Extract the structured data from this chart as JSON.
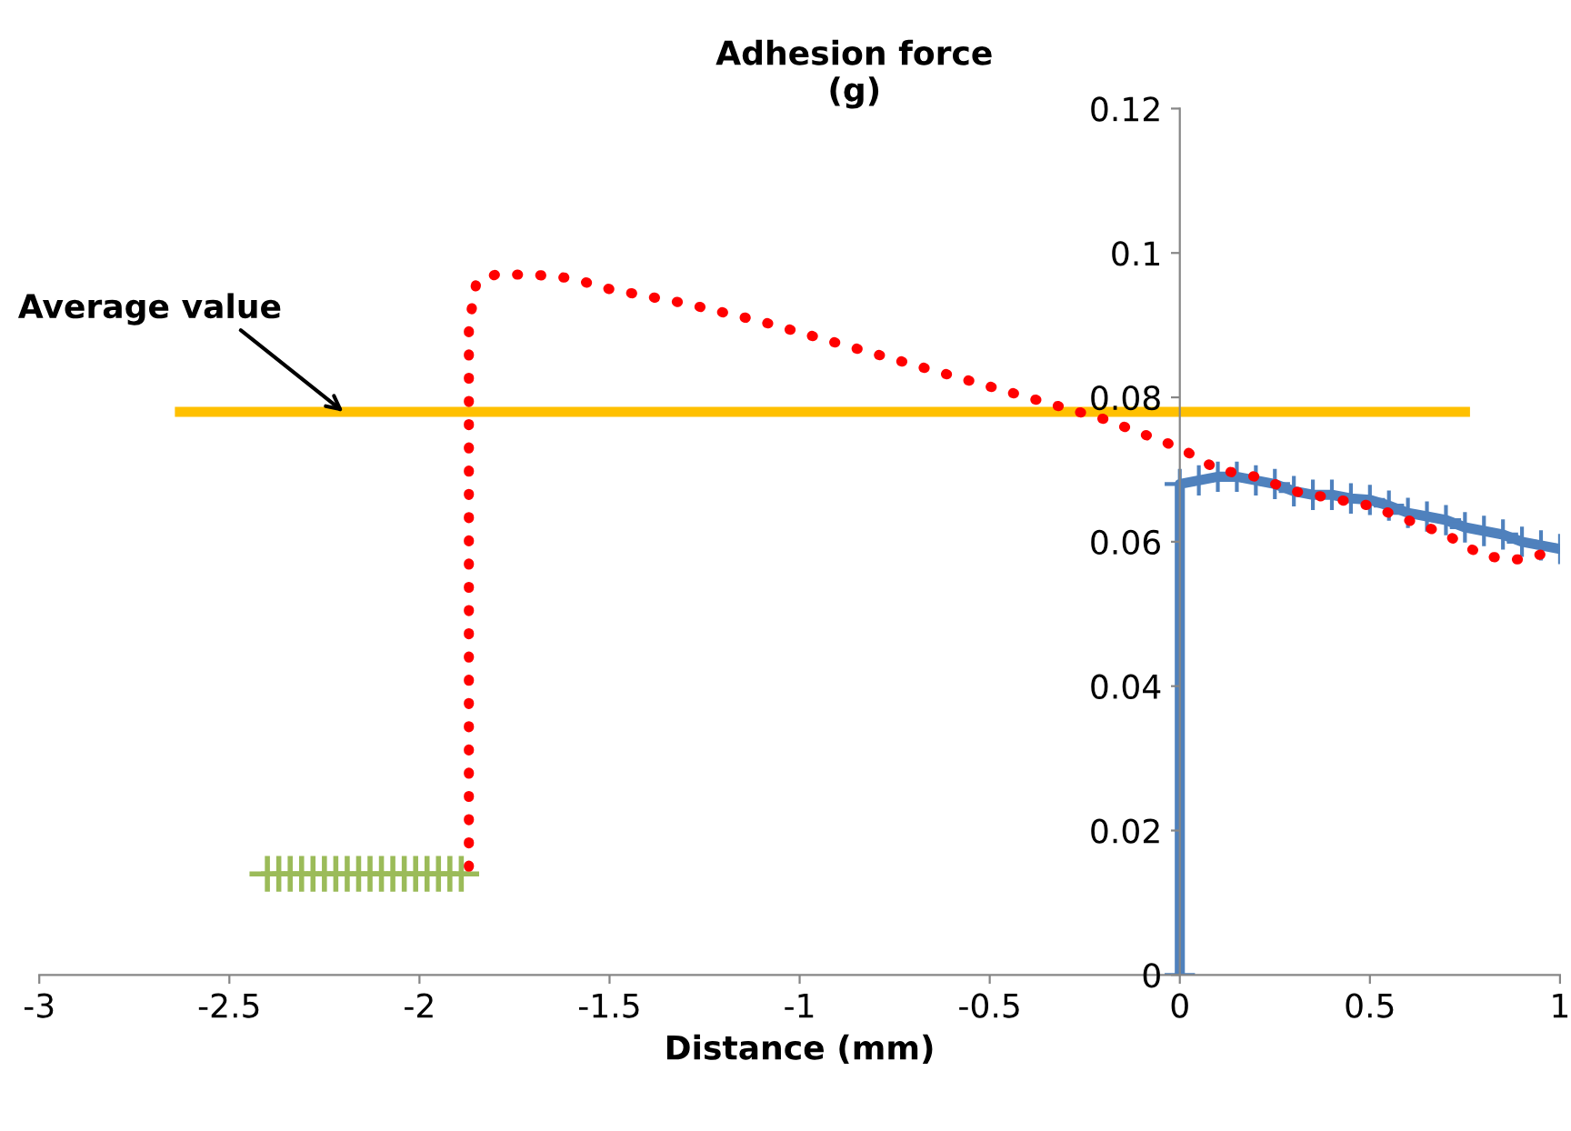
{
  "chart_data": {
    "type": "line",
    "xlabel": "Distance (mm)",
    "ylabel": "Adhesion force\n(g)",
    "xlim": [
      -3,
      1
    ],
    "ylim": [
      0,
      0.12
    ],
    "xticks": [
      -3,
      -2.5,
      -2,
      -1.5,
      -1,
      -0.5,
      0,
      0.5,
      1
    ],
    "yticks": [
      0,
      0.02,
      0.04,
      0.06,
      0.08,
      0.1,
      0.12
    ],
    "grid": false,
    "annotations": [
      {
        "text": "Average value",
        "x": -2.2,
        "y": 0.078
      }
    ],
    "series": [
      {
        "color": "#ffc000",
        "x": [
          -2.63,
          0.75
        ],
        "values": [
          0.078,
          0.078
        ],
        "marker": "none",
        "line_style": "solid"
      },
      {
        "color": "#ff0000",
        "x": [
          -1.87,
          -1.87,
          -1.87,
          -1.85,
          -1.8,
          -1.7,
          -1.6,
          -1.5,
          -1.3,
          -1.1,
          -1.0,
          -0.8,
          -0.6,
          -0.4,
          -0.2,
          0.0,
          0.1,
          0.2,
          0.3,
          0.4,
          0.5,
          0.6,
          0.7,
          0.8,
          0.9,
          1.0
        ],
        "values": [
          0.015,
          0.05,
          0.09,
          0.096,
          0.097,
          0.097,
          0.0965,
          0.095,
          0.093,
          0.0905,
          0.089,
          0.086,
          0.083,
          0.08,
          0.077,
          0.073,
          0.07,
          0.069,
          0.067,
          0.066,
          0.065,
          0.063,
          0.061,
          0.058,
          0.0575,
          0.059
        ],
        "marker": "none",
        "line_style": "dotted"
      },
      {
        "color": "#4f81bd",
        "x": [
          0,
          0,
          0.05,
          0.1,
          0.15,
          0.2,
          0.25,
          0.3,
          0.35,
          0.4,
          0.45,
          0.5,
          0.55,
          0.6,
          0.65,
          0.7,
          0.75,
          0.8,
          0.85,
          0.9,
          0.95,
          1.0
        ],
        "values": [
          0,
          0.068,
          0.0685,
          0.069,
          0.069,
          0.0685,
          0.068,
          0.067,
          0.0665,
          0.0665,
          0.066,
          0.0658,
          0.065,
          0.064,
          0.0635,
          0.063,
          0.062,
          0.0615,
          0.061,
          0.06,
          0.0595,
          0.059
        ],
        "marker": "cross",
        "line_style": "solid"
      },
      {
        "type": "scatter",
        "color": "#9bbb59",
        "x": [
          -2.4,
          -2.37,
          -2.34,
          -2.31,
          -2.28,
          -2.25,
          -2.22,
          -2.19,
          -2.16,
          -2.13,
          -2.1,
          -2.07,
          -2.04,
          -2.01,
          -1.98,
          -1.95,
          -1.92,
          -1.89
        ],
        "values": [
          0.014,
          0.014,
          0.014,
          0.014,
          0.014,
          0.014,
          0.014,
          0.014,
          0.014,
          0.014,
          0.014,
          0.014,
          0.014,
          0.014,
          0.014,
          0.014,
          0.014,
          0.014
        ],
        "marker": "cross"
      }
    ]
  }
}
